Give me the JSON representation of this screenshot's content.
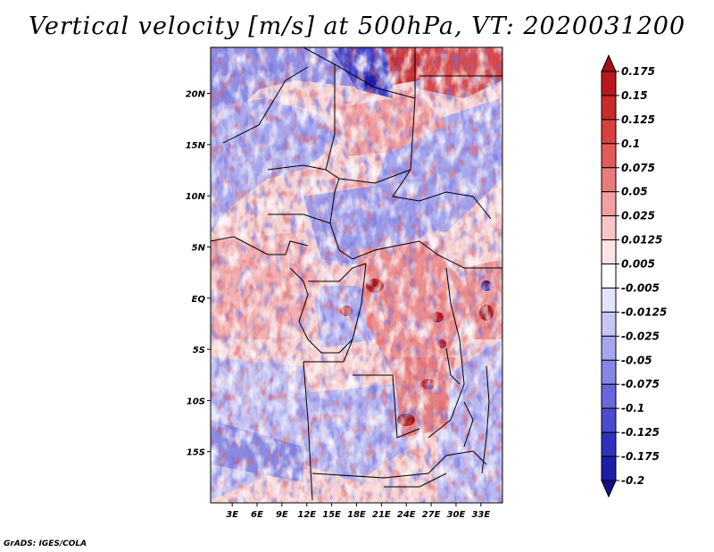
{
  "title": "Vertical velocity [m/s] at 500hPa, VT: 2020031200",
  "credit": "GrADS: IGES/COLA",
  "map": {
    "lat_ticks": [
      {
        "label": "20N",
        "lat": 20
      },
      {
        "label": "15N",
        "lat": 15
      },
      {
        "label": "10N",
        "lat": 10
      },
      {
        "label": "5N",
        "lat": 5
      },
      {
        "label": "EQ",
        "lat": 0
      },
      {
        "label": "5S",
        "lat": -5
      },
      {
        "label": "10S",
        "lat": -10
      },
      {
        "label": "15S",
        "lat": -15
      }
    ],
    "lon_ticks": [
      {
        "label": "3E",
        "lon": 3
      },
      {
        "label": "6E",
        "lon": 6
      },
      {
        "label": "9E",
        "lon": 9
      },
      {
        "label": "12E",
        "lon": 12
      },
      {
        "label": "15E",
        "lon": 15
      },
      {
        "label": "18E",
        "lon": 18
      },
      {
        "label": "21E",
        "lon": 21
      },
      {
        "label": "24E",
        "lon": 24
      },
      {
        "label": "27E",
        "lon": 27
      },
      {
        "label": "30E",
        "lon": 30
      },
      {
        "label": "33E",
        "lon": 33
      }
    ],
    "lon_range": [
      0.4,
      35.6
    ],
    "lat_range": [
      -20,
      24.5
    ]
  },
  "colorbar": {
    "levels": [
      {
        "label": "0.175",
        "color": "#a50f15"
      },
      {
        "label": "0.15",
        "color": "#b8181d"
      },
      {
        "label": "0.125",
        "color": "#cb2a2a"
      },
      {
        "label": "0.1",
        "color": "#d94040"
      },
      {
        "label": "0.075",
        "color": "#e25a5a"
      },
      {
        "label": "0.05",
        "color": "#eb7b7b"
      },
      {
        "label": "0.025",
        "color": "#f3a0a0"
      },
      {
        "label": "0.0125",
        "color": "#f9c6c6"
      },
      {
        "label": "0.005",
        "color": "#fde4e4"
      },
      {
        "label": "-0.005",
        "color": "#ffffff"
      },
      {
        "label": "-0.0125",
        "color": "#e3e3fb"
      },
      {
        "label": "-0.025",
        "color": "#c6c6f5"
      },
      {
        "label": "-0.05",
        "color": "#a6a6ef"
      },
      {
        "label": "-0.075",
        "color": "#8686e6"
      },
      {
        "label": "-0.1",
        "color": "#6767dc"
      },
      {
        "label": "-0.125",
        "color": "#4b4bd0"
      },
      {
        "label": "-0.175",
        "color": "#3030bf"
      },
      {
        "label": "-0.2",
        "color": "#1d1da8"
      }
    ],
    "below_color": "#10108c"
  }
}
